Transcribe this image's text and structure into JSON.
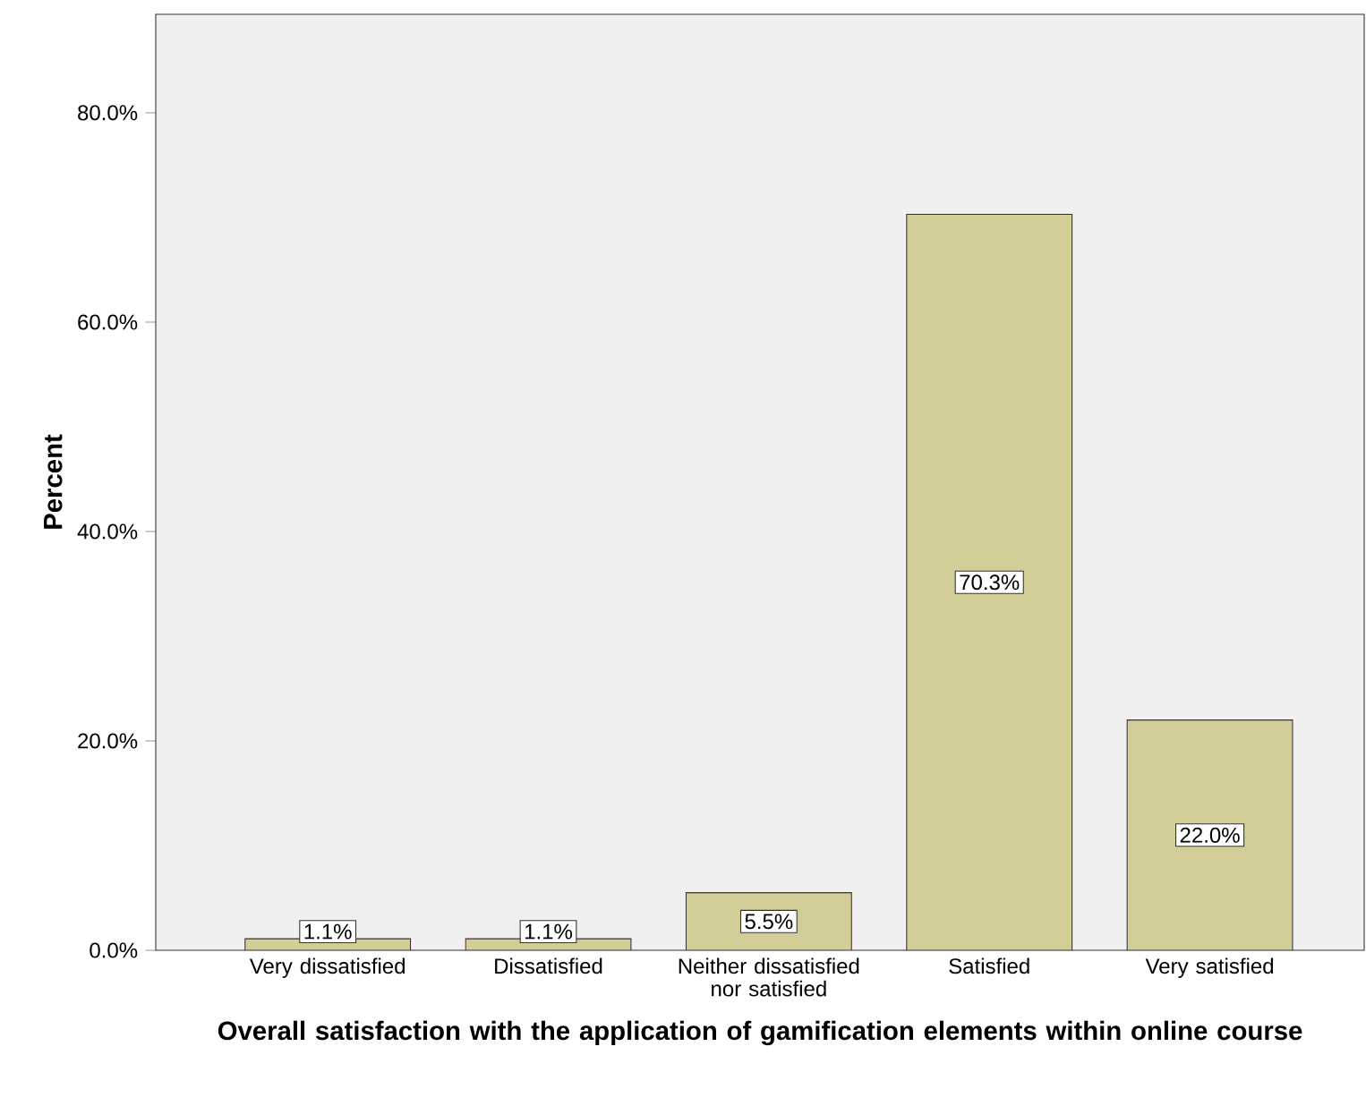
{
  "chart_data": {
    "type": "bar",
    "xlabel": "Overall satisfaction with the application of  gamification elements within online course",
    "ylabel": "Percent",
    "categories": [
      "Very dissatisfied",
      "Dissatisfied",
      "Neither dissatisfied nor satisfied",
      "Satisfied",
      "Very satisfied"
    ],
    "values": [
      1.1,
      1.1,
      5.5,
      70.3,
      22.0
    ],
    "value_labels": [
      "1.1%",
      "1.1%",
      "5.5%",
      "70.3%",
      "22.0%"
    ],
    "color": "#d3ce97",
    "ylim": [
      0,
      89.4
    ],
    "yticks": [
      {
        "value": 0,
        "label": "0.0%"
      },
      {
        "value": 20,
        "label": "20.0%"
      },
      {
        "value": 40,
        "label": "40.0%"
      },
      {
        "value": 60,
        "label": "60.0%"
      },
      {
        "value": 80,
        "label": "80.0%"
      }
    ],
    "grid": false
  }
}
